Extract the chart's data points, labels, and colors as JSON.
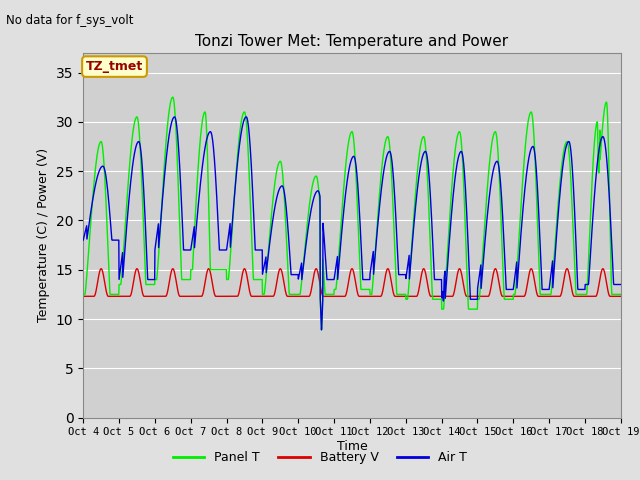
{
  "title": "Tonzi Tower Met: Temperature and Power",
  "top_left_text": "No data for f_sys_volt",
  "ylabel": "Temperature (C) / Power (V)",
  "xlabel": "Time",
  "ylim": [
    0,
    37
  ],
  "yticks": [
    0,
    5,
    10,
    15,
    20,
    25,
    30,
    35
  ],
  "xlim": [
    0,
    15
  ],
  "xtick_labels": [
    "Oct 4",
    "Oct 5",
    "Oct 6",
    "Oct 7",
    "Oct 8",
    "Oct 9",
    "Oct 10",
    "Oct 11",
    "Oct 12",
    "Oct 13",
    "Oct 14",
    "Oct 15",
    "Oct 16",
    "Oct 17",
    "Oct 18",
    "Oct 19"
  ],
  "bg_color": "#e0e0e0",
  "plot_bg_inner": "#d0d0d0",
  "legend_labels": [
    "Panel T",
    "Battery V",
    "Air T"
  ],
  "legend_colors": [
    "#00ee00",
    "#dd0000",
    "#0000dd"
  ],
  "label_box_text": "TZ_tmet",
  "label_box_color": "#ffffcc",
  "label_box_border": "#cc9900",
  "figsize": [
    6.4,
    4.8
  ],
  "dpi": 100
}
